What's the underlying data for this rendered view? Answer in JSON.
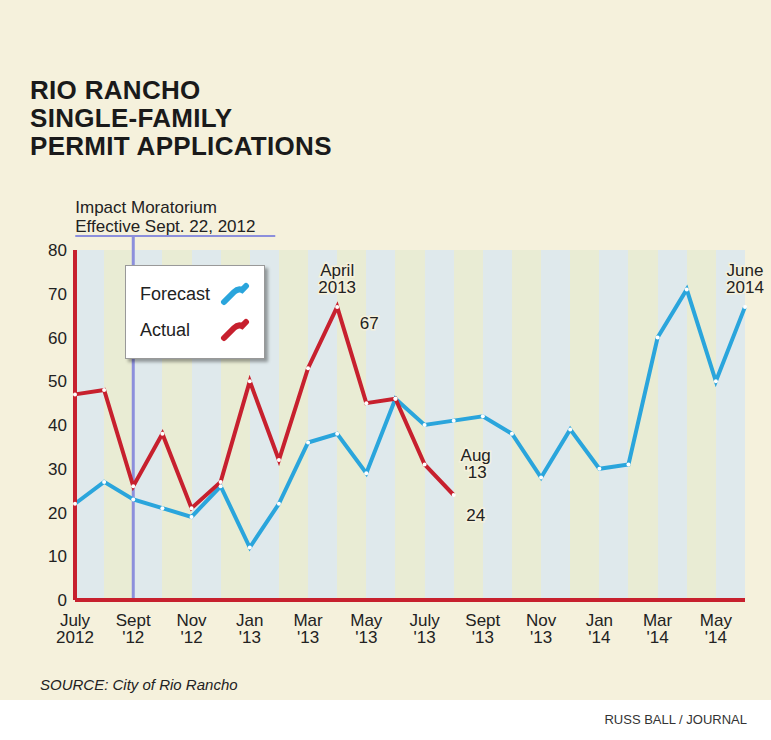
{
  "chart_data": {
    "type": "line",
    "title": "RIO RANCHO SINGLE-FAMILY PERMIT APPLICATIONS",
    "source": "SOURCE: City of Rio Rancho",
    "credit": "RUSS BALL / JOURNAL",
    "categories": [
      "July 2012",
      null,
      "Sept '12",
      null,
      "Nov '12",
      null,
      "Jan '13",
      null,
      "Mar '13",
      null,
      "May '13",
      null,
      "July '13",
      null,
      "Sept '13",
      null,
      "Nov '13",
      null,
      "Jan '14",
      null,
      "Mar '14",
      null,
      "May '14",
      null
    ],
    "series": [
      {
        "name": "Forecast",
        "color": "#2aa5dc",
        "marker": "dot",
        "values": [
          22,
          27,
          23,
          21,
          19,
          26,
          12,
          22,
          36,
          38,
          29,
          46,
          40,
          41,
          42,
          38,
          28,
          39,
          30,
          31,
          60,
          71,
          50,
          67
        ]
      },
      {
        "name": "Actual",
        "color": "#c7202e",
        "marker": "dot",
        "values": [
          47,
          48,
          26,
          38,
          21,
          27,
          50,
          32,
          53,
          67,
          45,
          46,
          31,
          24,
          null,
          null,
          null,
          null,
          null,
          null,
          null,
          null,
          null,
          null
        ]
      }
    ],
    "ylim": [
      0,
      80
    ],
    "yticks": [
      0,
      10,
      20,
      30,
      40,
      50,
      60,
      70,
      80
    ],
    "grid": true,
    "legend": "upper left",
    "annotations": [
      {
        "text": "Impact Moratorium Effective Sept. 22, 2012",
        "x": 2
      },
      {
        "text": "April 2013",
        "value_label": "67",
        "x": 9,
        "series": "Actual"
      },
      {
        "text": "Aug '13",
        "value_label": "24",
        "x": 13,
        "series": "Actual"
      },
      {
        "text": "June 2014",
        "x": 23,
        "series": "Forecast"
      }
    ]
  }
}
